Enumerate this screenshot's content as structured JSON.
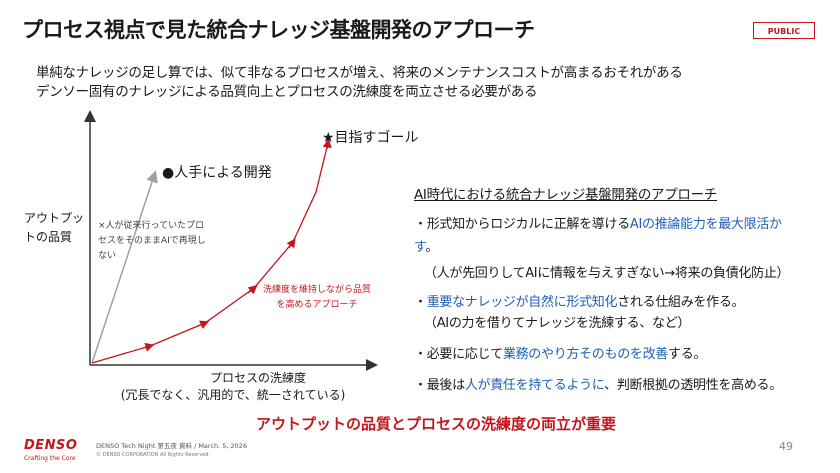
{
  "title": "プロセス視点で見た統合ナレッジ基盤開発のアプローチ",
  "badge": "PUBLIC",
  "subtitle_lines": [
    "単純なナレッジの足し算では、似て非なるプロセスが増え、将来のメンテナンスコストが高まるおそれがある",
    "デンソー固有のナレッジによる品質向上とプロセスの洗練度を両立させる必要がある"
  ],
  "diagram": {
    "y_axis_label": "アウトプットの品質",
    "x_axis_label": "プロセスの洗練度",
    "x_axis_sublabel": "(冗長でなく、汎用的で、統一されている)",
    "human_label": "●人手による開発",
    "goal_label": "★目指すゴール",
    "gray_note": "×人が従来行っていたプロセスをそのままAIで再現しない",
    "red_note": "洗練度を維持しながら品質を高めるアプローチ",
    "colors": {
      "red": "#c4161c",
      "gray": "#a0a0a0",
      "axis": "#333333"
    }
  },
  "right": {
    "heading": "AI時代における統合ナレッジ基盤開発のアプローチ",
    "bullet1_pre": "・形式知からロジカルに正解を導ける",
    "bullet1_hl": "AIの推論能力を最大限活か",
    "bullet1_hl2": "す",
    "bullet1_post": "。",
    "bullet1_note": "（人が先回りしてAIに情報を与えすぎない→将来の負債化防止）",
    "bullet2_pre": "・",
    "bullet2_hl": "重要なナレッジが自然に形式知化",
    "bullet2_post": "される仕組みを作る。",
    "bullet2_note": "（AIの力を借りてナレッジを洗練する、など）",
    "bullet3_pre": "・必要に応じて",
    "bullet3_hl": "業務のやり方そのものを改善",
    "bullet3_post": "する。",
    "bullet4_pre": "・最後は",
    "bullet4_hl": "人が責任を持てるように",
    "bullet4_post": "、判断根拠の透明性を高める。"
  },
  "conclusion": "アウトプットの品質とプロセスの洗練度の両立が重要",
  "footer": {
    "logo": "DENSO",
    "tagline": "Crafting the Core",
    "event": "DENSO Tech Night 第五夜 資料 / March. 5, 2026",
    "copyright": "© DENSO CORPORATION All Rights Reserved.",
    "page": "49"
  }
}
